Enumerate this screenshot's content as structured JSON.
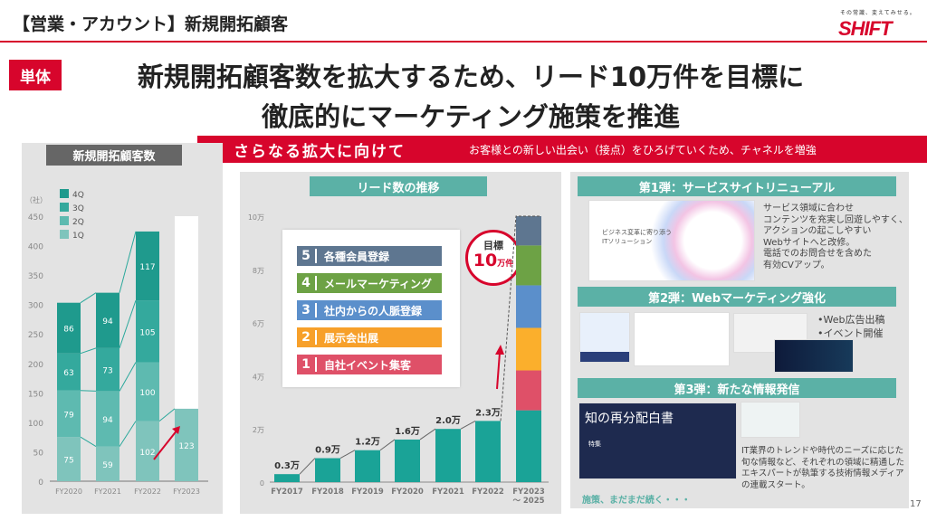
{
  "header": {
    "title": "【営業・アカウント】新規開拓顧客",
    "tagline": "その常識、変えてみせる。",
    "logo": "SHIFT",
    "badge": "単体",
    "headline1": "新規開拓顧客数を拡大するため、リード10万件を目標に",
    "headline2": "徹底的にマーケティング施策を推進"
  },
  "banner": {
    "title": "さらなる拡大に向けて",
    "desc": "お客様との新しい出会い（接点）をひろげていくため、チャネルを増強"
  },
  "left": {
    "title": "新規開拓顧客数"
  },
  "middle": {
    "title": "リード数の推移",
    "target_label": "目標",
    "target_value": "10",
    "target_unit": "万件",
    "channels": [
      {
        "n": "5",
        "label": "各種会員登録",
        "color": "#5e7690"
      },
      {
        "n": "4",
        "label": "メールマーケティング",
        "color": "#6da245"
      },
      {
        "n": "3",
        "label": "社内からの人脈登録",
        "color": "#5b8fcb"
      },
      {
        "n": "2",
        "label": "展示会出展",
        "color": "#f7a02a"
      },
      {
        "n": "1",
        "label": "自社イベント集客",
        "color": "#df5068"
      }
    ]
  },
  "right": {
    "s1_title": "第1弾：サービスサイトリニューアル",
    "s1_text": [
      "サービス領域に合わせ",
      "コンテンツを充実し回遊しやすく、",
      "アクションの起こしやすい",
      "Webサイトへと改修。",
      "電話でのお問合せを含めた",
      "有効CVアップ。"
    ],
    "s1_img_text1": "ビジネス変革に寄り添う",
    "s1_img_text2": "ITソリューション",
    "s2_title": "第2弾：Webマーケティング強化",
    "s2_items": [
      "•Web広告出稿",
      "•イベント開催"
    ],
    "s3_title": "第3弾：新たな情報発信",
    "s3_img_title": "知の再分配白書",
    "s3_img_sub": "特集",
    "s3_text": [
      "IT業界のトレンドや時代のニーズに応じた",
      "旬な情報など、それぞれの領域に精通した",
      "エキスパートが執筆する技術情報メディア",
      "の連載スタート。"
    ],
    "more": "施策、まだまだ続く・・・"
  },
  "page_number": "17",
  "chart_data": [
    {
      "type": "bar",
      "stacked": true,
      "title": "新規開拓顧客数",
      "ylabel": "（社）",
      "ylim": [
        0,
        450
      ],
      "yticks": [
        0,
        50,
        100,
        150,
        200,
        250,
        300,
        350,
        400,
        450
      ],
      "categories": [
        "FY2020",
        "FY2021",
        "FY2022",
        "FY2023"
      ],
      "series": [
        {
          "name": "1Q",
          "color": "#7fc4bc",
          "values": [
            75,
            59,
            102,
            123
          ]
        },
        {
          "name": "2Q",
          "color": "#5ebab0",
          "values": [
            79,
            94,
            100,
            null
          ]
        },
        {
          "name": "3Q",
          "color": "#34a99d",
          "values": [
            63,
            73,
            105,
            null
          ]
        },
        {
          "name": "4Q",
          "color": "#1f9a8d",
          "values": [
            86,
            94,
            117,
            null
          ]
        }
      ]
    },
    {
      "type": "bar",
      "title": "リード数の推移",
      "ylim": [
        0,
        10
      ],
      "yticks": [
        "0",
        "2万",
        "4万",
        "6万",
        "8万",
        "10万"
      ],
      "categories": [
        "FY2017",
        "FY2018",
        "FY2019",
        "FY2020",
        "FY2021",
        "FY2022",
        "FY2023\n～ 2025"
      ],
      "values": [
        0.3,
        0.9,
        1.2,
        1.6,
        2.0,
        2.3,
        null
      ],
      "labels": [
        "0.3万",
        "0.9万",
        "1.2万",
        "1.6万",
        "2.0万",
        "2.3万"
      ],
      "target_stack": [
        {
          "name": "base",
          "color": "#1aa397",
          "value": 2.7
        },
        {
          "name": "1",
          "color": "#df5068",
          "value": 1.5
        },
        {
          "name": "2",
          "color": "#fbaf2c",
          "value": 1.6
        },
        {
          "name": "3",
          "color": "#5b8fcb",
          "value": 1.6
        },
        {
          "name": "4",
          "color": "#6da245",
          "value": 1.5
        },
        {
          "name": "5",
          "color": "#5e7690",
          "value": 1.1
        }
      ]
    }
  ]
}
